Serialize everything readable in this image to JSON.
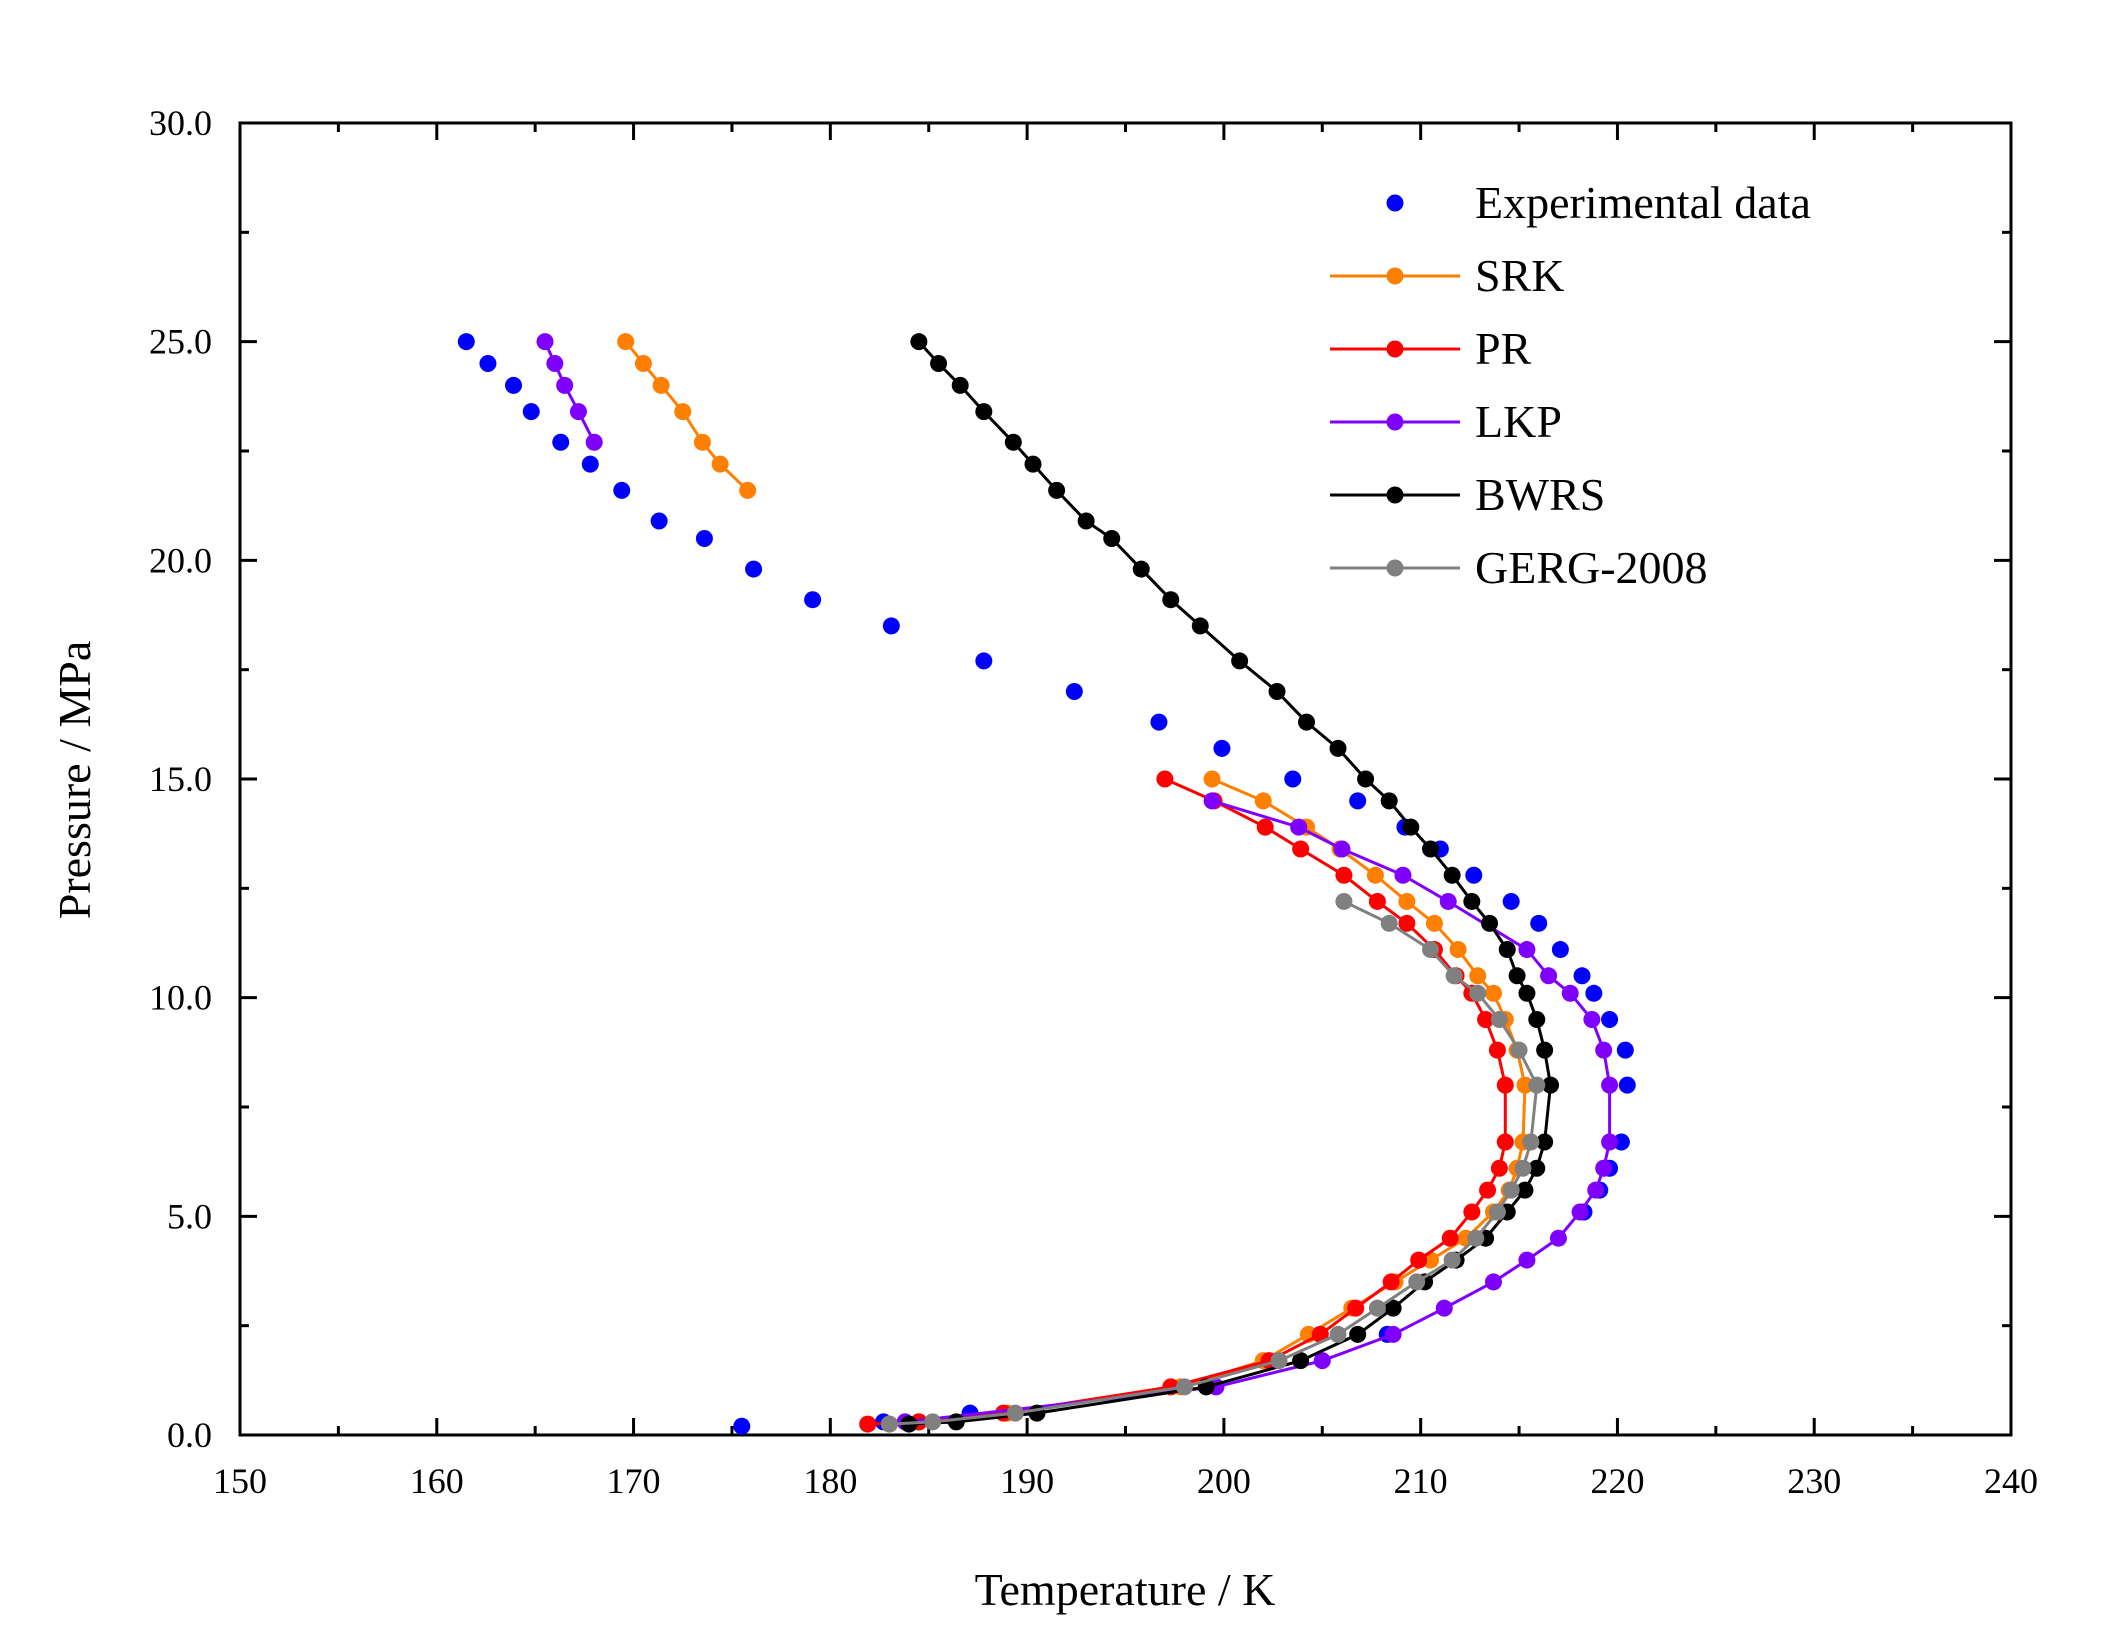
{
  "chart_data": {
    "type": "scatter",
    "title": "",
    "xlabel": "Temperature / K",
    "ylabel": "Pressure / MPa",
    "xlim": [
      150,
      240
    ],
    "ylim": [
      0,
      30
    ],
    "x_ticks": [
      150,
      160,
      170,
      180,
      190,
      200,
      210,
      220,
      230,
      240
    ],
    "x_tick_labels": [
      "150",
      "160",
      "170",
      "180",
      "190",
      "200",
      "210",
      "220",
      "230",
      "240"
    ],
    "y_ticks": [
      0,
      5,
      10,
      15,
      20,
      25,
      30
    ],
    "y_tick_labels": [
      "0.0",
      "5.0",
      "10.0",
      "15.0",
      "20.0",
      "25.0",
      "30.0"
    ],
    "grid": false,
    "legend_position": "top-right",
    "series": [
      {
        "name": "Experimental data",
        "color": "#0000ff",
        "line": false,
        "points": [
          [
            161.5,
            25.0
          ],
          [
            162.6,
            24.5
          ],
          [
            163.9,
            24.0
          ],
          [
            164.8,
            23.4
          ],
          [
            166.3,
            22.7
          ],
          [
            167.8,
            22.2
          ],
          [
            169.4,
            21.6
          ],
          [
            171.3,
            20.9
          ],
          [
            173.6,
            20.5
          ],
          [
            176.1,
            19.8
          ],
          [
            179.1,
            19.1
          ],
          [
            183.1,
            18.5
          ],
          [
            187.8,
            17.7
          ],
          [
            192.4,
            17.0
          ],
          [
            196.7,
            16.3
          ],
          [
            199.9,
            15.7
          ],
          [
            203.5,
            15.0
          ],
          [
            206.8,
            14.5
          ],
          [
            209.2,
            13.9
          ],
          [
            211.0,
            13.4
          ],
          [
            212.7,
            12.8
          ],
          [
            214.6,
            12.2
          ],
          [
            216.0,
            11.7
          ],
          [
            217.1,
            11.1
          ],
          [
            218.2,
            10.5
          ],
          [
            218.8,
            10.1
          ],
          [
            219.6,
            9.5
          ],
          [
            220.4,
            8.8
          ],
          [
            220.5,
            8.0
          ],
          [
            220.2,
            6.7
          ],
          [
            219.6,
            6.1
          ],
          [
            219.1,
            5.6
          ],
          [
            218.3,
            5.1
          ],
          [
            208.3,
            2.3
          ],
          [
            187.1,
            0.5
          ],
          [
            182.7,
            0.3
          ],
          [
            175.5,
            0.2
          ]
        ]
      },
      {
        "name": "SRK",
        "color": "#ff7f00",
        "line": true,
        "segments": [
          [
            [
              169.6,
              25.0
            ],
            [
              170.5,
              24.5
            ],
            [
              171.4,
              24.0
            ],
            [
              172.5,
              23.4
            ],
            [
              173.5,
              22.7
            ],
            [
              174.4,
              22.2
            ],
            [
              175.8,
              21.6
            ]
          ],
          [
            [
              199.4,
              15.0
            ],
            [
              202.0,
              14.5
            ],
            [
              204.2,
              13.9
            ],
            [
              205.9,
              13.4
            ],
            [
              207.7,
              12.8
            ],
            [
              209.3,
              12.2
            ],
            [
              210.7,
              11.7
            ],
            [
              211.9,
              11.1
            ],
            [
              212.9,
              10.5
            ],
            [
              213.7,
              10.1
            ],
            [
              214.3,
              9.5
            ],
            [
              214.9,
              8.8
            ],
            [
              215.3,
              8.0
            ],
            [
              215.2,
              6.7
            ],
            [
              214.9,
              6.1
            ],
            [
              214.5,
              5.6
            ],
            [
              213.7,
              5.1
            ],
            [
              212.3,
              4.5
            ],
            [
              210.5,
              4.0
            ],
            [
              208.7,
              3.5
            ],
            [
              206.5,
              2.9
            ],
            [
              204.3,
              2.3
            ],
            [
              202.0,
              1.7
            ],
            [
              197.8,
              1.1
            ],
            [
              189.0,
              0.5
            ],
            [
              184.5,
              0.3
            ],
            [
              183.0,
              0.25
            ]
          ]
        ]
      },
      {
        "name": "PR",
        "color": "#ff0000",
        "line": true,
        "segments": [
          [
            [
              197.0,
              15.0
            ],
            [
              199.5,
              14.5
            ],
            [
              202.1,
              13.9
            ],
            [
              203.9,
              13.4
            ],
            [
              206.1,
              12.8
            ],
            [
              207.8,
              12.2
            ],
            [
              209.3,
              11.7
            ],
            [
              210.7,
              11.1
            ],
            [
              211.8,
              10.5
            ],
            [
              212.6,
              10.1
            ],
            [
              213.3,
              9.5
            ],
            [
              213.9,
              8.8
            ],
            [
              214.3,
              8.0
            ],
            [
              214.3,
              6.7
            ],
            [
              214.0,
              6.1
            ],
            [
              213.4,
              5.6
            ],
            [
              212.6,
              5.1
            ],
            [
              211.5,
              4.5
            ],
            [
              209.9,
              4.0
            ],
            [
              208.5,
              3.5
            ],
            [
              206.7,
              2.9
            ],
            [
              204.9,
              2.3
            ],
            [
              202.3,
              1.7
            ],
            [
              197.3,
              1.1
            ],
            [
              188.8,
              0.5
            ],
            [
              184.5,
              0.3
            ],
            [
              181.9,
              0.25
            ]
          ]
        ]
      },
      {
        "name": "LKP",
        "color": "#8000ff",
        "line": true,
        "segments": [
          [
            [
              165.5,
              25.0
            ],
            [
              166.0,
              24.5
            ],
            [
              166.5,
              24.0
            ],
            [
              167.2,
              23.4
            ],
            [
              168.0,
              22.7
            ]
          ],
          [
            [
              199.4,
              14.5
            ],
            [
              203.8,
              13.9
            ],
            [
              206.0,
              13.4
            ],
            [
              209.1,
              12.8
            ],
            [
              211.4,
              12.2
            ],
            [
              215.4,
              11.1
            ],
            [
              216.5,
              10.5
            ],
            [
              217.6,
              10.1
            ],
            [
              218.7,
              9.5
            ],
            [
              219.3,
              8.8
            ],
            [
              219.6,
              8.0
            ],
            [
              219.6,
              6.7
            ],
            [
              219.3,
              6.1
            ],
            [
              218.9,
              5.6
            ],
            [
              218.1,
              5.1
            ],
            [
              217.0,
              4.5
            ],
            [
              215.4,
              4.0
            ],
            [
              213.7,
              3.5
            ],
            [
              211.2,
              2.9
            ],
            [
              208.6,
              2.3
            ],
            [
              205.0,
              1.7
            ],
            [
              199.6,
              1.1
            ],
            [
              183.8,
              0.3
            ]
          ]
        ]
      },
      {
        "name": "BWRS",
        "color": "#000000",
        "line": true,
        "segments": [
          [
            [
              184.5,
              25.0
            ],
            [
              185.5,
              24.5
            ],
            [
              186.6,
              24.0
            ],
            [
              187.8,
              23.4
            ],
            [
              189.3,
              22.7
            ],
            [
              190.3,
              22.2
            ],
            [
              191.5,
              21.6
            ],
            [
              193.0,
              20.9
            ],
            [
              194.3,
              20.5
            ],
            [
              195.8,
              19.8
            ],
            [
              197.3,
              19.1
            ],
            [
              198.8,
              18.5
            ],
            [
              200.8,
              17.7
            ],
            [
              202.7,
              17.0
            ],
            [
              204.2,
              16.3
            ],
            [
              205.8,
              15.7
            ],
            [
              207.2,
              15.0
            ],
            [
              208.4,
              14.5
            ],
            [
              209.5,
              13.9
            ],
            [
              210.5,
              13.4
            ],
            [
              211.6,
              12.8
            ],
            [
              212.6,
              12.2
            ],
            [
              213.5,
              11.7
            ],
            [
              214.4,
              11.1
            ],
            [
              214.9,
              10.5
            ],
            [
              215.4,
              10.1
            ],
            [
              215.9,
              9.5
            ],
            [
              216.3,
              8.8
            ],
            [
              216.6,
              8.0
            ],
            [
              216.3,
              6.7
            ],
            [
              215.9,
              6.1
            ],
            [
              215.3,
              5.6
            ],
            [
              214.4,
              5.1
            ],
            [
              213.3,
              4.5
            ],
            [
              211.8,
              4.0
            ],
            [
              210.2,
              3.5
            ],
            [
              208.6,
              2.9
            ],
            [
              206.8,
              2.3
            ],
            [
              203.9,
              1.7
            ],
            [
              199.1,
              1.1
            ],
            [
              190.5,
              0.5
            ],
            [
              186.4,
              0.3
            ],
            [
              184.0,
              0.25
            ]
          ]
        ]
      },
      {
        "name": "GERG-2008",
        "color": "#808080",
        "line": true,
        "segments": [
          [
            [
              206.1,
              12.2
            ],
            [
              208.4,
              11.7
            ],
            [
              210.5,
              11.1
            ],
            [
              211.7,
              10.5
            ],
            [
              212.9,
              10.1
            ],
            [
              214.0,
              9.5
            ],
            [
              215.0,
              8.8
            ],
            [
              215.9,
              8.0
            ],
            [
              215.6,
              6.7
            ],
            [
              215.2,
              6.1
            ],
            [
              214.6,
              5.6
            ],
            [
              213.9,
              5.1
            ],
            [
              212.8,
              4.5
            ],
            [
              211.6,
              4.0
            ],
            [
              209.8,
              3.5
            ],
            [
              207.8,
              2.9
            ],
            [
              205.8,
              2.3
            ],
            [
              202.8,
              1.7
            ],
            [
              198.0,
              1.1
            ],
            [
              189.4,
              0.5
            ],
            [
              185.2,
              0.3
            ],
            [
              183.0,
              0.25
            ]
          ]
        ]
      }
    ]
  }
}
